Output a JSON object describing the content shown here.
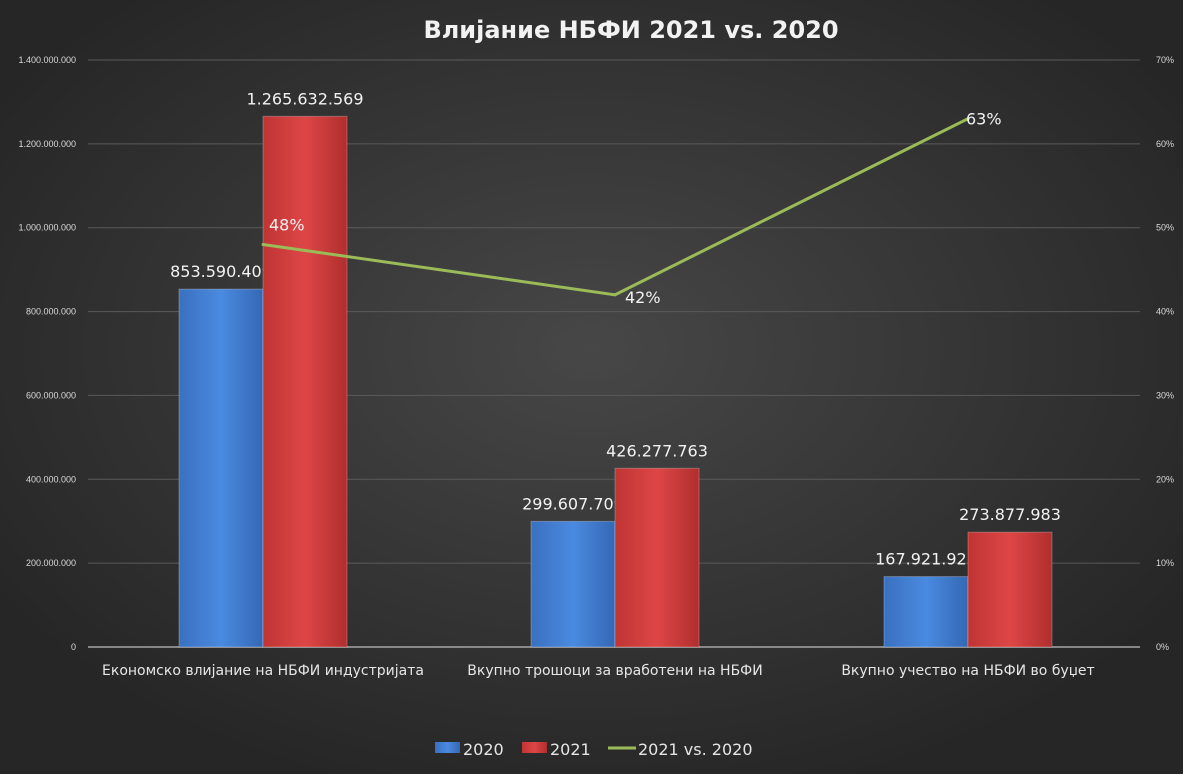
{
  "chart_data": {
    "type": "bar",
    "title": "Влијание НБФИ 2021 vs. 2020",
    "categories": [
      "Економско влијание на НБФИ индустријата",
      "Вкупно трошоци за вработени на НБФИ",
      "Вкупно учество на НБФИ во буџет"
    ],
    "series": [
      {
        "name": "2020",
        "type": "bar",
        "axis": "left",
        "color": "#3f7fd6",
        "values": [
          853590409,
          299607709,
          167921927
        ],
        "labels": [
          "853.590.409",
          "299.607.709",
          "167.921.927"
        ]
      },
      {
        "name": "2021",
        "type": "bar",
        "axis": "left",
        "color": "#d63c3c",
        "values": [
          1265632569,
          426277763,
          273877983
        ],
        "labels": [
          "1.265.632.569",
          "426.277.763",
          "273.877.983"
        ]
      },
      {
        "name": "2021 vs. 2020",
        "type": "line",
        "axis": "right",
        "color": "#9bbb59",
        "values": [
          48,
          42,
          63
        ],
        "labels": [
          "48%",
          "42%",
          "63%"
        ]
      }
    ],
    "ylim": [
      0,
      1400000000
    ],
    "y_ticks": [
      "0",
      "200.000.000",
      "400.000.000",
      "600.000.000",
      "800.000.000",
      "1.000.000.000",
      "1.200.000.000",
      "1.400.000.000"
    ],
    "y2lim": [
      0,
      70
    ],
    "y2_ticks": [
      "0%",
      "10%",
      "20%",
      "30%",
      "40%",
      "50%",
      "60%",
      "70%"
    ],
    "grid": true,
    "legend": "bottom"
  }
}
